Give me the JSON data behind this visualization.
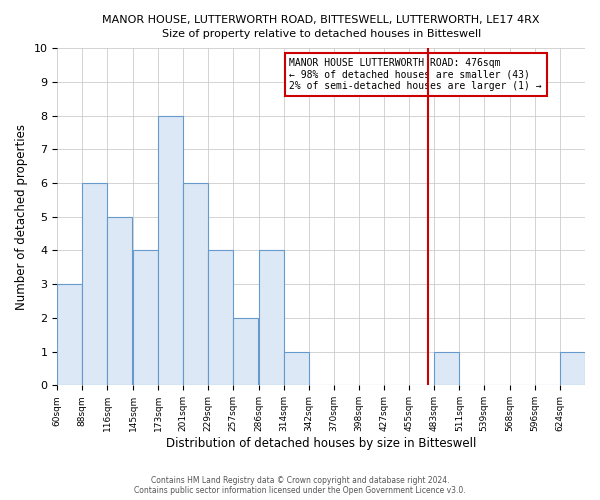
{
  "title": "MANOR HOUSE, LUTTERWORTH ROAD, BITTESWELL, LUTTERWORTH, LE17 4RX",
  "subtitle": "Size of property relative to detached houses in Bitteswell",
  "xlabel": "Distribution of detached houses by size in Bitteswell",
  "ylabel": "Number of detached properties",
  "bins": [
    60,
    88,
    116,
    145,
    173,
    201,
    229,
    257,
    286,
    314,
    342,
    370,
    398,
    427,
    455,
    483,
    511,
    539,
    568,
    596,
    624
  ],
  "bin_labels": [
    "60sqm",
    "88sqm",
    "116sqm",
    "145sqm",
    "173sqm",
    "201sqm",
    "229sqm",
    "257sqm",
    "286sqm",
    "314sqm",
    "342sqm",
    "370sqm",
    "398sqm",
    "427sqm",
    "455sqm",
    "483sqm",
    "511sqm",
    "539sqm",
    "568sqm",
    "596sqm",
    "624sqm"
  ],
  "counts": [
    3,
    6,
    5,
    4,
    8,
    6,
    4,
    2,
    4,
    1,
    0,
    0,
    0,
    0,
    0,
    1,
    0,
    0,
    0,
    0,
    1
  ],
  "bar_color": "#dce8f5",
  "bar_edge_color": "#6699cc",
  "marker_value": 476,
  "marker_color": "#cc0000",
  "ylim": [
    0,
    10
  ],
  "yticks": [
    0,
    1,
    2,
    3,
    4,
    5,
    6,
    7,
    8,
    9,
    10
  ],
  "annotation_title": "MANOR HOUSE LUTTERWORTH ROAD: 476sqm",
  "annotation_line1": "← 98% of detached houses are smaller (43)",
  "annotation_line2": "2% of semi-detached houses are larger (1) →",
  "footer1": "Contains HM Land Registry data © Crown copyright and database right 2024.",
  "footer2": "Contains public sector information licensed under the Open Government Licence v3.0.",
  "grid_color": "#cccccc",
  "background_color": "#ffffff"
}
